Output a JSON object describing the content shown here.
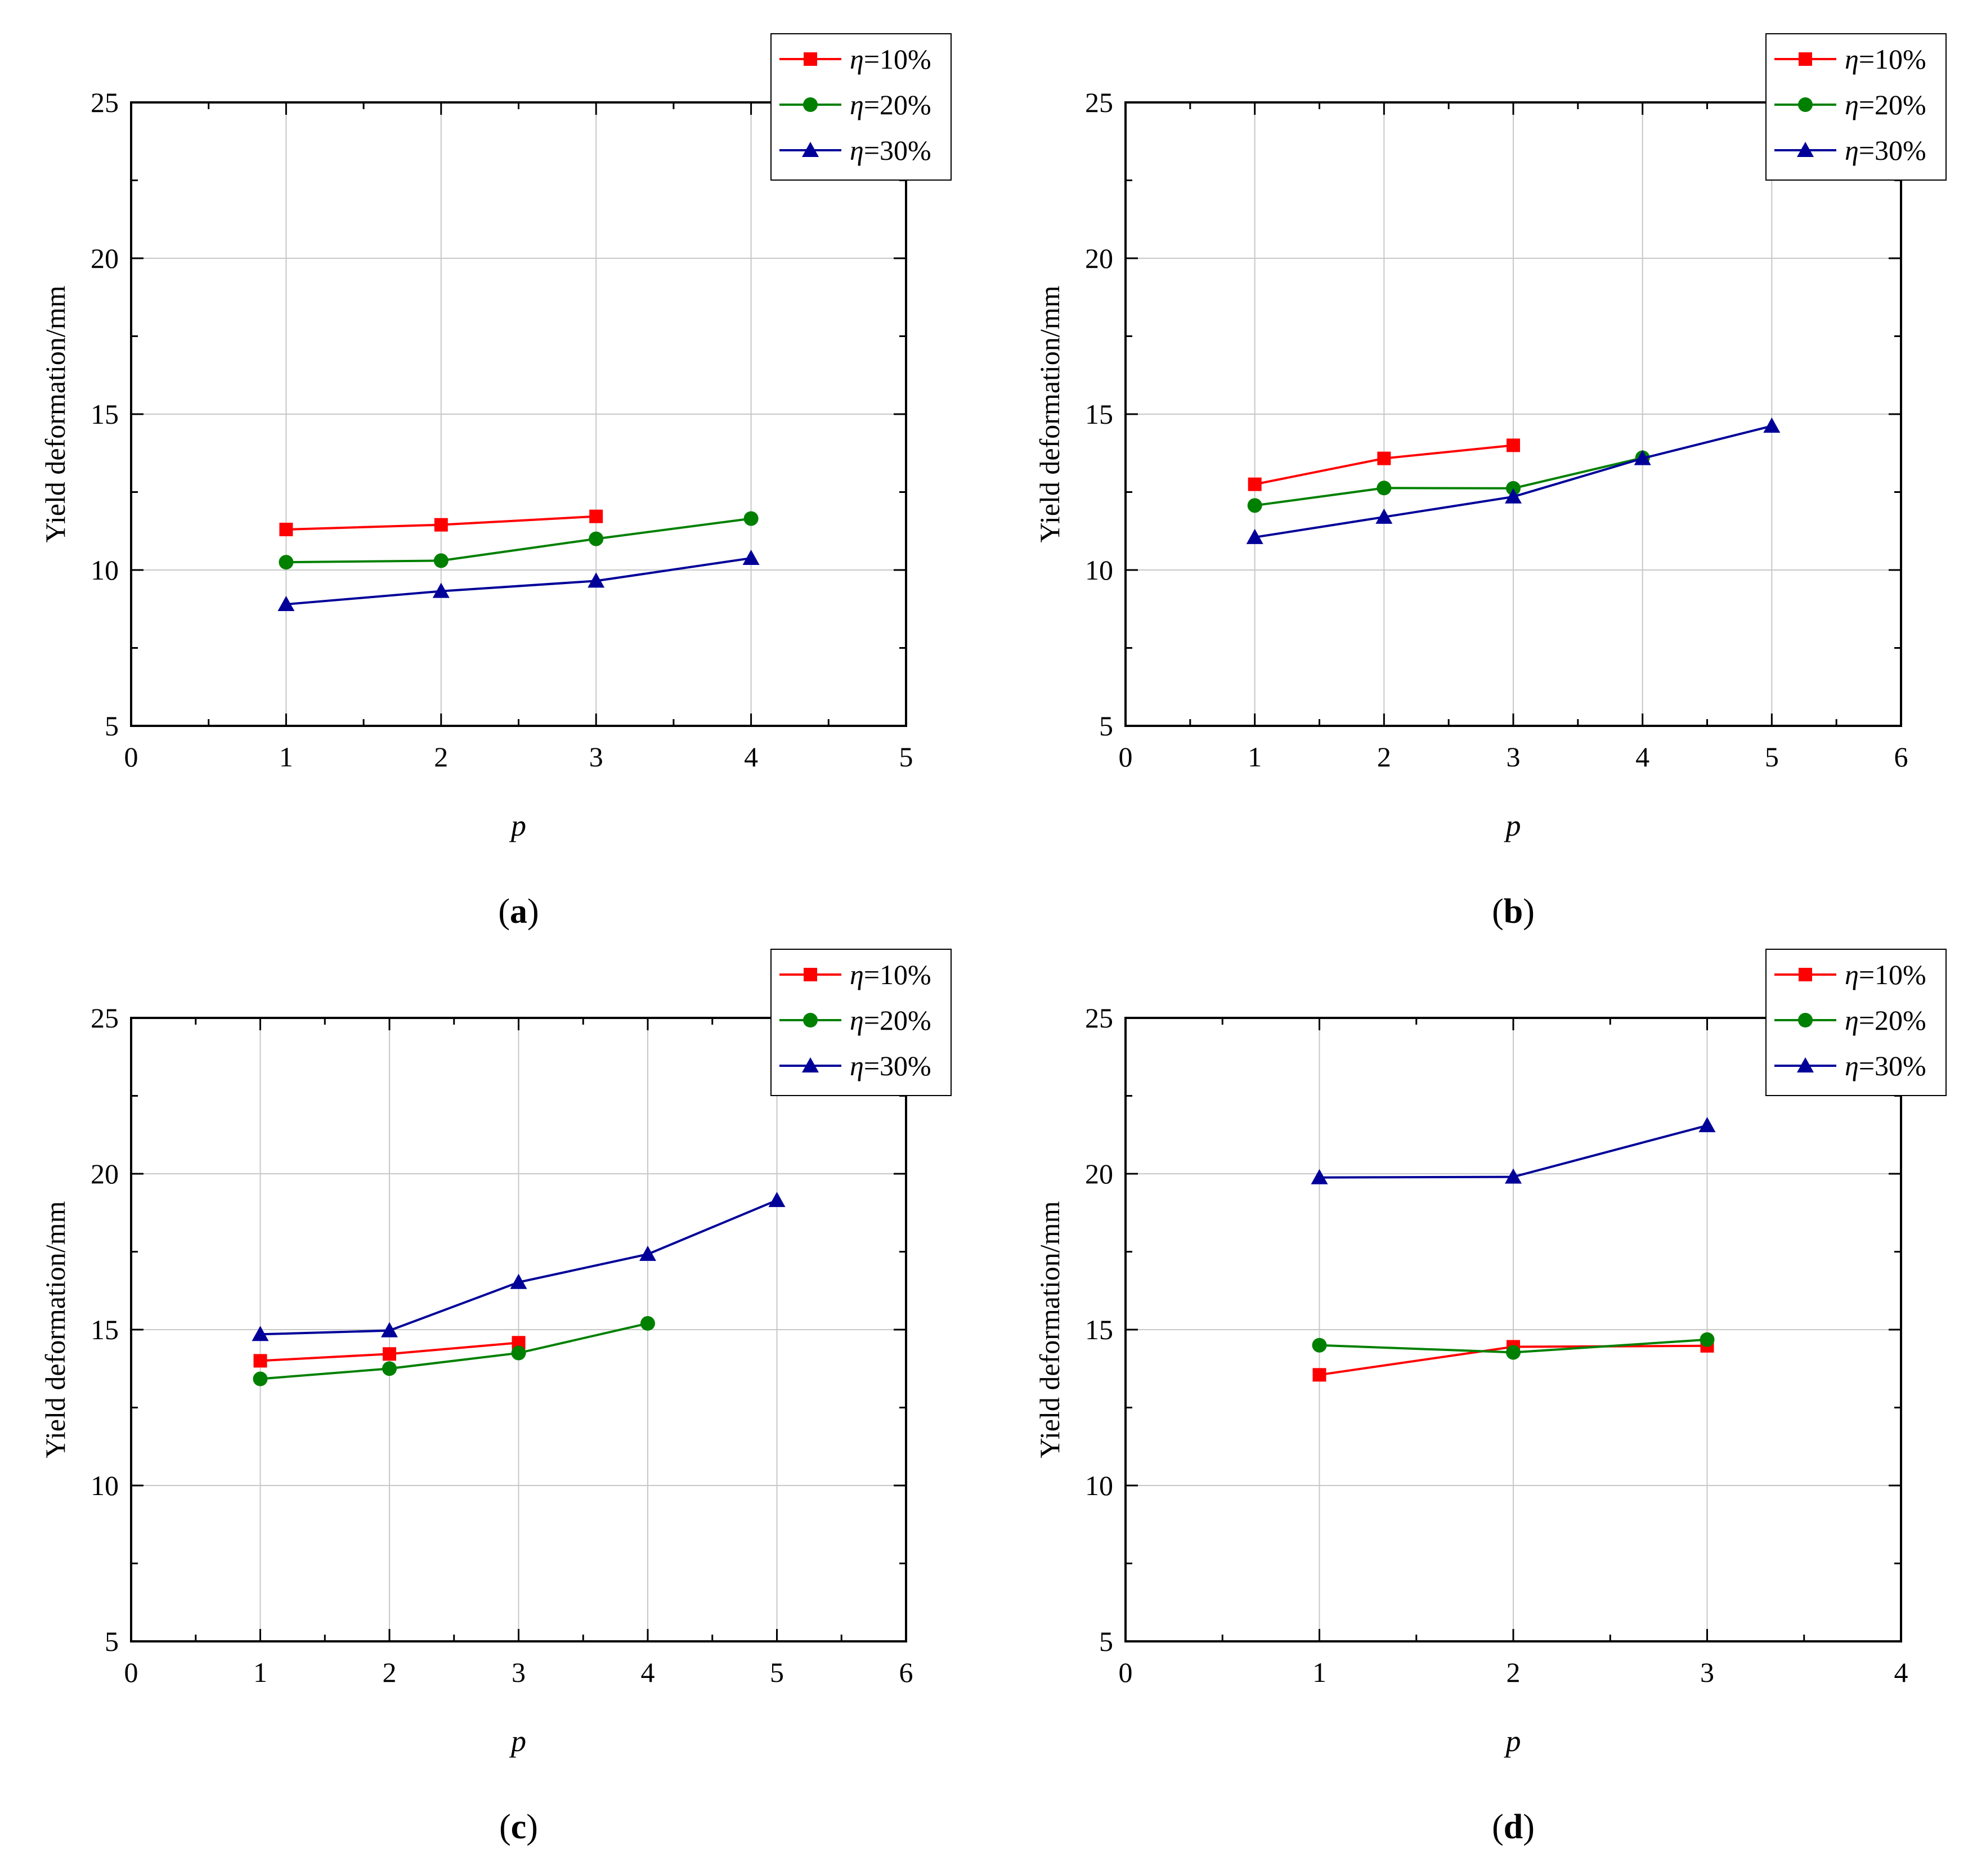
{
  "chart_data": [
    {
      "type": "line",
      "panel_label": "a",
      "title": "",
      "xlabel": "p",
      "ylabel": "Yield deformation/mm",
      "xlim": [
        0,
        5
      ],
      "ylim": [
        5,
        25
      ],
      "xticks": [
        "0",
        "1",
        "2",
        "3",
        "4",
        "5"
      ],
      "yticks": [
        "5",
        "10",
        "15",
        "20",
        "25"
      ],
      "grid": true,
      "legend_position": "top-right",
      "series": [
        {
          "name": "η=10%",
          "eta_symbol": "η",
          "eta_value": "=10%",
          "color": "#ff0000",
          "marker": "square",
          "x": [
            1,
            2,
            3
          ],
          "values": [
            11.3,
            11.45,
            11.72
          ]
        },
        {
          "name": "η=20%",
          "eta_symbol": "η",
          "eta_value": "=20%",
          "color": "#008000",
          "marker": "circle",
          "x": [
            1,
            2,
            3,
            4
          ],
          "values": [
            10.25,
            10.3,
            11.0,
            11.65
          ]
        },
        {
          "name": "η=30%",
          "eta_symbol": "η",
          "eta_value": "=30%",
          "color": "#000099",
          "marker": "triangle",
          "x": [
            1,
            2,
            3,
            4
          ],
          "values": [
            8.9,
            9.32,
            9.65,
            10.38
          ]
        }
      ]
    },
    {
      "type": "line",
      "panel_label": "b",
      "title": "",
      "xlabel": "p",
      "ylabel": "Yield deformation/mm",
      "xlim": [
        0,
        6
      ],
      "ylim": [
        5,
        25
      ],
      "xticks": [
        "0",
        "1",
        "2",
        "3",
        "4",
        "5",
        "6"
      ],
      "yticks": [
        "5",
        "10",
        "15",
        "20",
        "25"
      ],
      "grid": true,
      "legend_position": "top-right",
      "series": [
        {
          "name": "η=10%",
          "eta_symbol": "η",
          "eta_value": "=10%",
          "color": "#ff0000",
          "marker": "square",
          "x": [
            1,
            2,
            3
          ],
          "values": [
            12.75,
            13.58,
            14.0
          ]
        },
        {
          "name": "η=20%",
          "eta_symbol": "η",
          "eta_value": "=20%",
          "color": "#008000",
          "marker": "circle",
          "x": [
            1,
            2,
            3,
            4
          ],
          "values": [
            12.07,
            12.63,
            12.62,
            13.6
          ]
        },
        {
          "name": "η=30%",
          "eta_symbol": "η",
          "eta_value": "=30%",
          "color": "#000099",
          "marker": "triangle",
          "x": [
            1,
            2,
            3,
            4,
            5
          ],
          "values": [
            11.05,
            11.7,
            12.35,
            13.58,
            14.62
          ]
        }
      ]
    },
    {
      "type": "line",
      "panel_label": "c",
      "title": "",
      "xlabel": "p",
      "ylabel": "Yield deformation/mm",
      "xlim": [
        0,
        6
      ],
      "ylim": [
        5,
        25
      ],
      "xticks": [
        "0",
        "1",
        "2",
        "3",
        "4",
        "5",
        "6"
      ],
      "yticks": [
        "5",
        "10",
        "15",
        "20",
        "25"
      ],
      "grid": true,
      "legend_position": "top-right",
      "series": [
        {
          "name": "η=10%",
          "eta_symbol": "η",
          "eta_value": "=10%",
          "color": "#ff0000",
          "marker": "square",
          "x": [
            1,
            2,
            3
          ],
          "values": [
            14.0,
            14.22,
            14.58
          ]
        },
        {
          "name": "η=20%",
          "eta_symbol": "η",
          "eta_value": "=20%",
          "color": "#008000",
          "marker": "circle",
          "x": [
            1,
            2,
            3,
            4
          ],
          "values": [
            13.42,
            13.75,
            14.25,
            15.2
          ]
        },
        {
          "name": "η=30%",
          "eta_symbol": "η",
          "eta_value": "=30%",
          "color": "#000099",
          "marker": "triangle",
          "x": [
            1,
            2,
            3,
            4,
            5
          ],
          "values": [
            14.85,
            14.97,
            16.52,
            17.42,
            19.15
          ]
        }
      ]
    },
    {
      "type": "line",
      "panel_label": "d",
      "title": "",
      "xlabel": "p",
      "ylabel": "Yield deformation/mm",
      "xlim": [
        0,
        4
      ],
      "ylim": [
        5,
        25
      ],
      "xticks": [
        "0",
        "1",
        "2",
        "3",
        "4"
      ],
      "yticks": [
        "5",
        "10",
        "15",
        "20",
        "25"
      ],
      "grid": true,
      "legend_position": "top-right",
      "series": [
        {
          "name": "η=10%",
          "eta_symbol": "η",
          "eta_value": "=10%",
          "color": "#ff0000",
          "marker": "square",
          "x": [
            1,
            2,
            3
          ],
          "values": [
            13.55,
            14.45,
            14.48
          ]
        },
        {
          "name": "η=20%",
          "eta_symbol": "η",
          "eta_value": "=20%",
          "color": "#008000",
          "marker": "circle",
          "x": [
            1,
            2,
            3
          ],
          "values": [
            14.5,
            14.27,
            14.68
          ]
        },
        {
          "name": "η=30%",
          "eta_symbol": "η",
          "eta_value": "=30%",
          "color": "#000099",
          "marker": "triangle",
          "x": [
            1,
            2,
            3
          ],
          "values": [
            19.88,
            19.9,
            21.55
          ]
        }
      ]
    }
  ]
}
